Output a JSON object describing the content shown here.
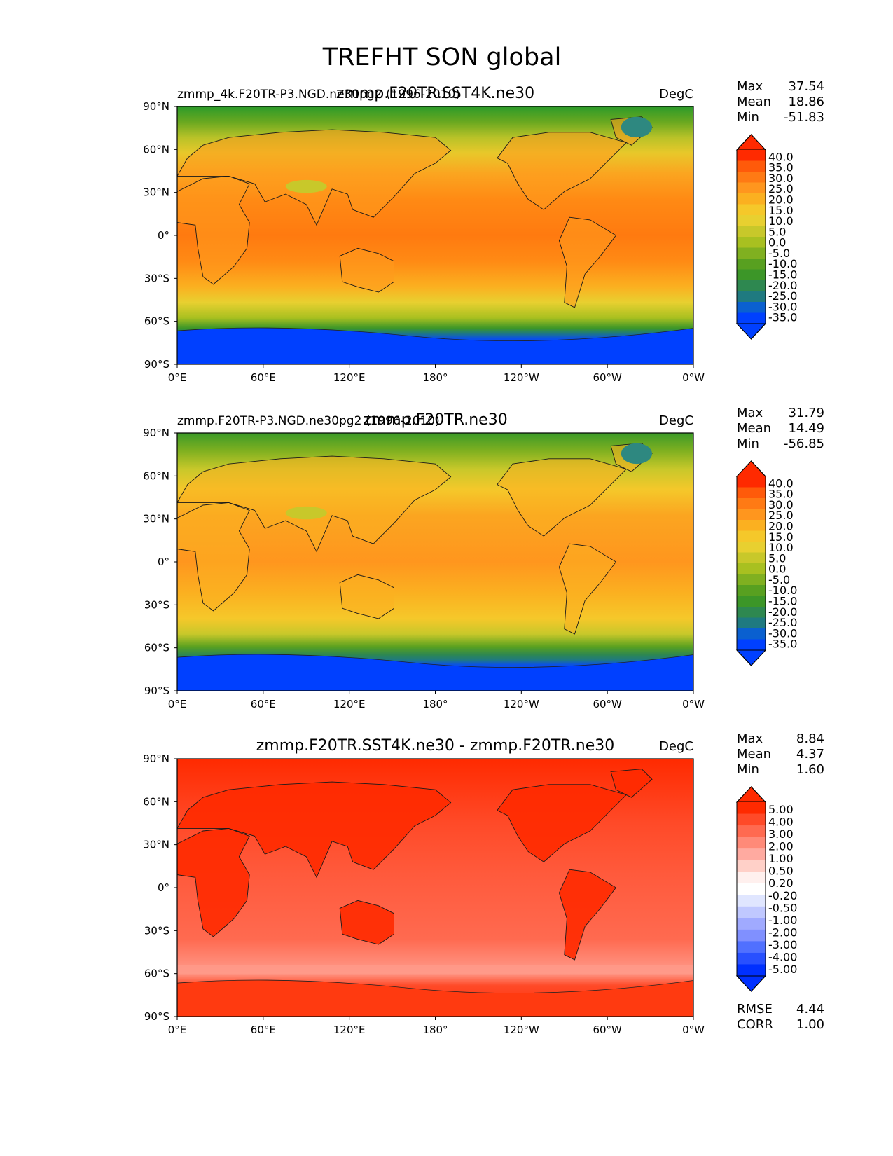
{
  "figure_title": "TREFHT SON global",
  "panels": [
    {
      "id": "test",
      "left_label": "zmmp_4k.F20TR-P3.NGD.ne30pg2 (1996-2010)",
      "center_label": "zmmp.F20TR.SST4K.ne30",
      "units": "DegC",
      "stats": {
        "max_label": "Max",
        "max": "37.54",
        "mean_label": "Mean",
        "mean": "18.86",
        "min_label": "Min",
        "min": "-51.83"
      },
      "colorbar": {
        "labels": [
          "40.0",
          "35.0",
          "30.0",
          "25.0",
          "20.0",
          "15.0",
          "10.0",
          "5.0",
          "0.0",
          "-5.0",
          "-10.0",
          "-15.0",
          "-20.0",
          "-25.0",
          "-30.0",
          "-35.0"
        ],
        "colors": [
          "#ff2a00",
          "#ff5a0a",
          "#ff7a14",
          "#ff961e",
          "#fbb020",
          "#f5c82a",
          "#e8d030",
          "#c8c82a",
          "#a8c020",
          "#80b020",
          "#58a020",
          "#3c9628",
          "#2e8850",
          "#1f7a80",
          "#0a60d0",
          "#0040ff"
        ],
        "top_color": "#ff2a00",
        "bottom_color": "#0040ff"
      }
    },
    {
      "id": "ref",
      "left_label": "zmmp.F20TR-P3.NGD.ne30pg2 (1996-2010)",
      "center_label": "zmmp.F20TR.ne30",
      "units": "DegC",
      "stats": {
        "max_label": "Max",
        "max": "31.79",
        "mean_label": "Mean",
        "mean": "14.49",
        "min_label": "Min",
        "min": "-56.85"
      },
      "colorbar": {
        "labels": [
          "40.0",
          "35.0",
          "30.0",
          "25.0",
          "20.0",
          "15.0",
          "10.0",
          "5.0",
          "0.0",
          "-5.0",
          "-10.0",
          "-15.0",
          "-20.0",
          "-25.0",
          "-30.0",
          "-35.0"
        ],
        "colors": [
          "#ff2a00",
          "#ff5a0a",
          "#ff7a14",
          "#ff961e",
          "#fbb020",
          "#f5c82a",
          "#e8d030",
          "#c8c82a",
          "#a8c020",
          "#80b020",
          "#58a020",
          "#3c9628",
          "#2e8850",
          "#1f7a80",
          "#0a60d0",
          "#0040ff"
        ],
        "top_color": "#ff2a00",
        "bottom_color": "#0040ff"
      }
    },
    {
      "id": "diff",
      "left_label": "",
      "center_label": "zmmp.F20TR.SST4K.ne30 - zmmp.F20TR.ne30",
      "units": "DegC",
      "stats": {
        "max_label": "Max",
        "max": "8.84",
        "mean_label": "Mean",
        "mean": "4.37",
        "min_label": "Min",
        "min": "1.60"
      },
      "extra_stats": {
        "rmse_label": "RMSE",
        "rmse": "4.44",
        "corr_label": "CORR",
        "corr": "1.00"
      },
      "colorbar": {
        "labels": [
          "5.00",
          "4.00",
          "3.00",
          "2.00",
          "1.00",
          "0.50",
          "0.20",
          "-0.20",
          "-0.50",
          "-1.00",
          "-2.00",
          "-3.00",
          "-4.00",
          "-5.00"
        ],
        "colors": [
          "#ff2a00",
          "#ff4a28",
          "#ff6a50",
          "#ff8a78",
          "#ffaaa0",
          "#ffd0c8",
          "#fff0ee",
          "#ffffff",
          "#e0e6ff",
          "#c0c8ff",
          "#a0aaff",
          "#8090ff",
          "#5070ff",
          "#2850ff",
          "#0030ff"
        ],
        "top_color": "#ff2a00",
        "bottom_color": "#0030ff"
      }
    }
  ],
  "axes": {
    "y_ticks": [
      "90°N",
      "60°N",
      "30°N",
      "0°",
      "30°S",
      "60°S",
      "90°S"
    ],
    "x_ticks": [
      "0°E",
      "60°E",
      "120°E",
      "180°",
      "120°W",
      "60°W",
      "0°W"
    ]
  },
  "chart_data": {
    "type": "heatmap",
    "title": "TREFHT SON global",
    "variable": "TREFHT",
    "units": "DegC",
    "x_range_deg_east": [
      0,
      360
    ],
    "y_range_deg_lat": [
      -90,
      90
    ],
    "panels": [
      {
        "name": "zmmp.F20TR.SST4K.ne30",
        "max": 37.54,
        "mean": 18.86,
        "min": -51.83
      },
      {
        "name": "zmmp.F20TR.ne30",
        "max": 31.79,
        "mean": 14.49,
        "min": -56.85
      },
      {
        "name": "zmmp.F20TR.SST4K.ne30 - zmmp.F20TR.ne30",
        "max": 8.84,
        "mean": 4.37,
        "min": 1.6,
        "rmse": 4.44,
        "corr": 1.0
      }
    ]
  }
}
